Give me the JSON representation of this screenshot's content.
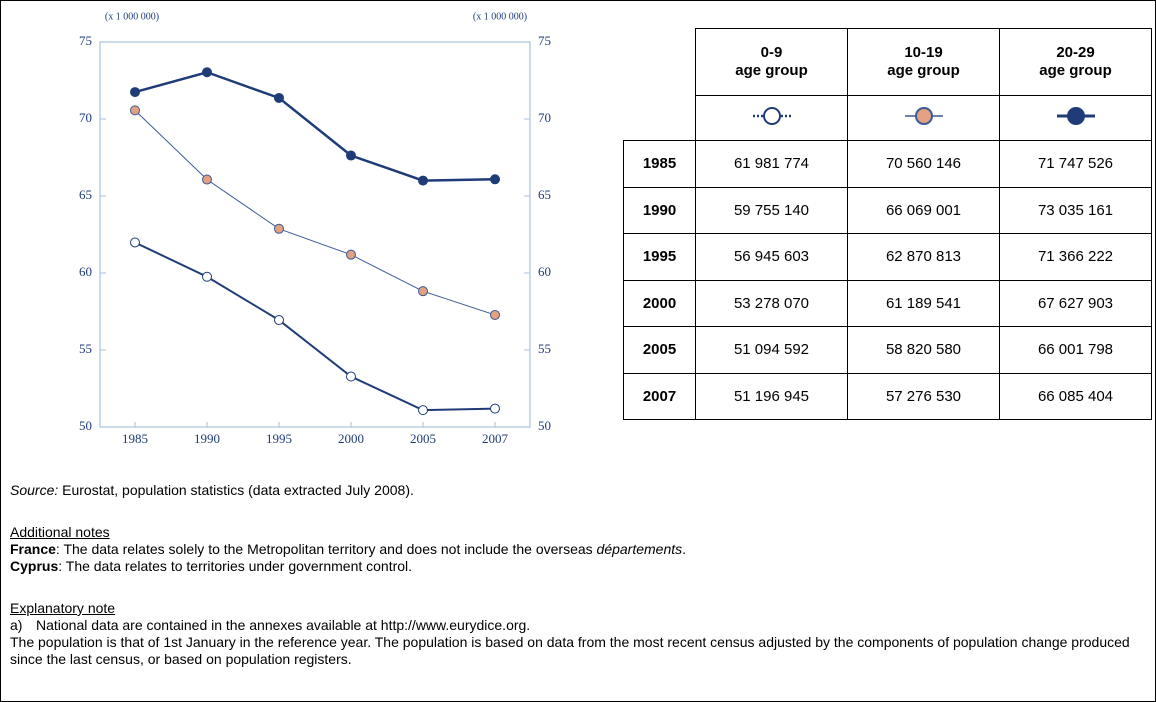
{
  "chart_data": {
    "type": "line",
    "ylabel": "(x 1 000 000)",
    "y2label": "(x 1 000 000)",
    "categories": [
      "1985",
      "1990",
      "1995",
      "2000",
      "2005",
      "2007"
    ],
    "ylim": [
      50,
      75
    ],
    "yticks": [
      50,
      55,
      60,
      65,
      70,
      75
    ],
    "y2lim": [
      50,
      75
    ],
    "y2ticks": [
      50,
      55,
      60,
      65,
      70,
      75
    ],
    "frame_color": "#a9c3da",
    "series": [
      {
        "color": "#1f3c78",
        "marker_color": "#ffffff",
        "line_width": 2,
        "values": [
          61.981774,
          59.75514,
          56.945603,
          53.27807,
          51.094592,
          51.196945
        ]
      },
      {
        "color": "#3a5a95",
        "marker_color": "#e3a083",
        "line_width": 1,
        "values": [
          70.560146,
          66.069001,
          62.870813,
          61.189541,
          58.82058,
          57.27653
        ]
      },
      {
        "color": "#1f3c78",
        "marker_color": "#1f3c78",
        "line_width": 2.5,
        "values": [
          71.747526,
          73.035161,
          71.366222,
          67.627903,
          66.001798,
          66.085404
        ]
      }
    ]
  },
  "table": {
    "columns": [
      {
        "label": "0-9",
        "sublabel": "age group"
      },
      {
        "label": "10-19",
        "sublabel": "age group"
      },
      {
        "label": "20-29",
        "sublabel": "age group"
      }
    ],
    "rows": [
      [
        "1985",
        "61 981 774",
        "70 560 146",
        "71 747 526"
      ],
      [
        "1990",
        "59 755 140",
        "66 069 001",
        "73 035 161"
      ],
      [
        "1995",
        "56 945 603",
        "62 870 813",
        "71 366 222"
      ],
      [
        "2000",
        "53 278 070",
        "61 189 541",
        "67 627 903"
      ],
      [
        "2005",
        "51 094 592",
        "58 820 580",
        "66 001 798"
      ],
      [
        "2007",
        "51 196 945",
        "57 276 530",
        "66 085 404"
      ]
    ]
  },
  "notes": {
    "source_label": "Source:",
    "source_text": " Eurostat, population statistics (data extracted July 2008).",
    "additional_heading": "Additional notes",
    "france": {
      "term": "France",
      "text": ": The data relates solely to the Metropolitan territory and does not include the overseas ",
      "em": "départements",
      "end": "."
    },
    "cyprus": {
      "term": "Cyprus",
      "text": ": The data relates to territories under government control."
    },
    "explanatory_heading": "Explanatory note",
    "item_a": {
      "marker": "a)",
      "text": "National data are contained in the annexes available at http://www.eurydice.org."
    },
    "paragraph": "The population is that of 1st January in the reference year. The population is based on data from the most recent census adjusted by the components of population change produced since the last census, or based on population registers."
  }
}
